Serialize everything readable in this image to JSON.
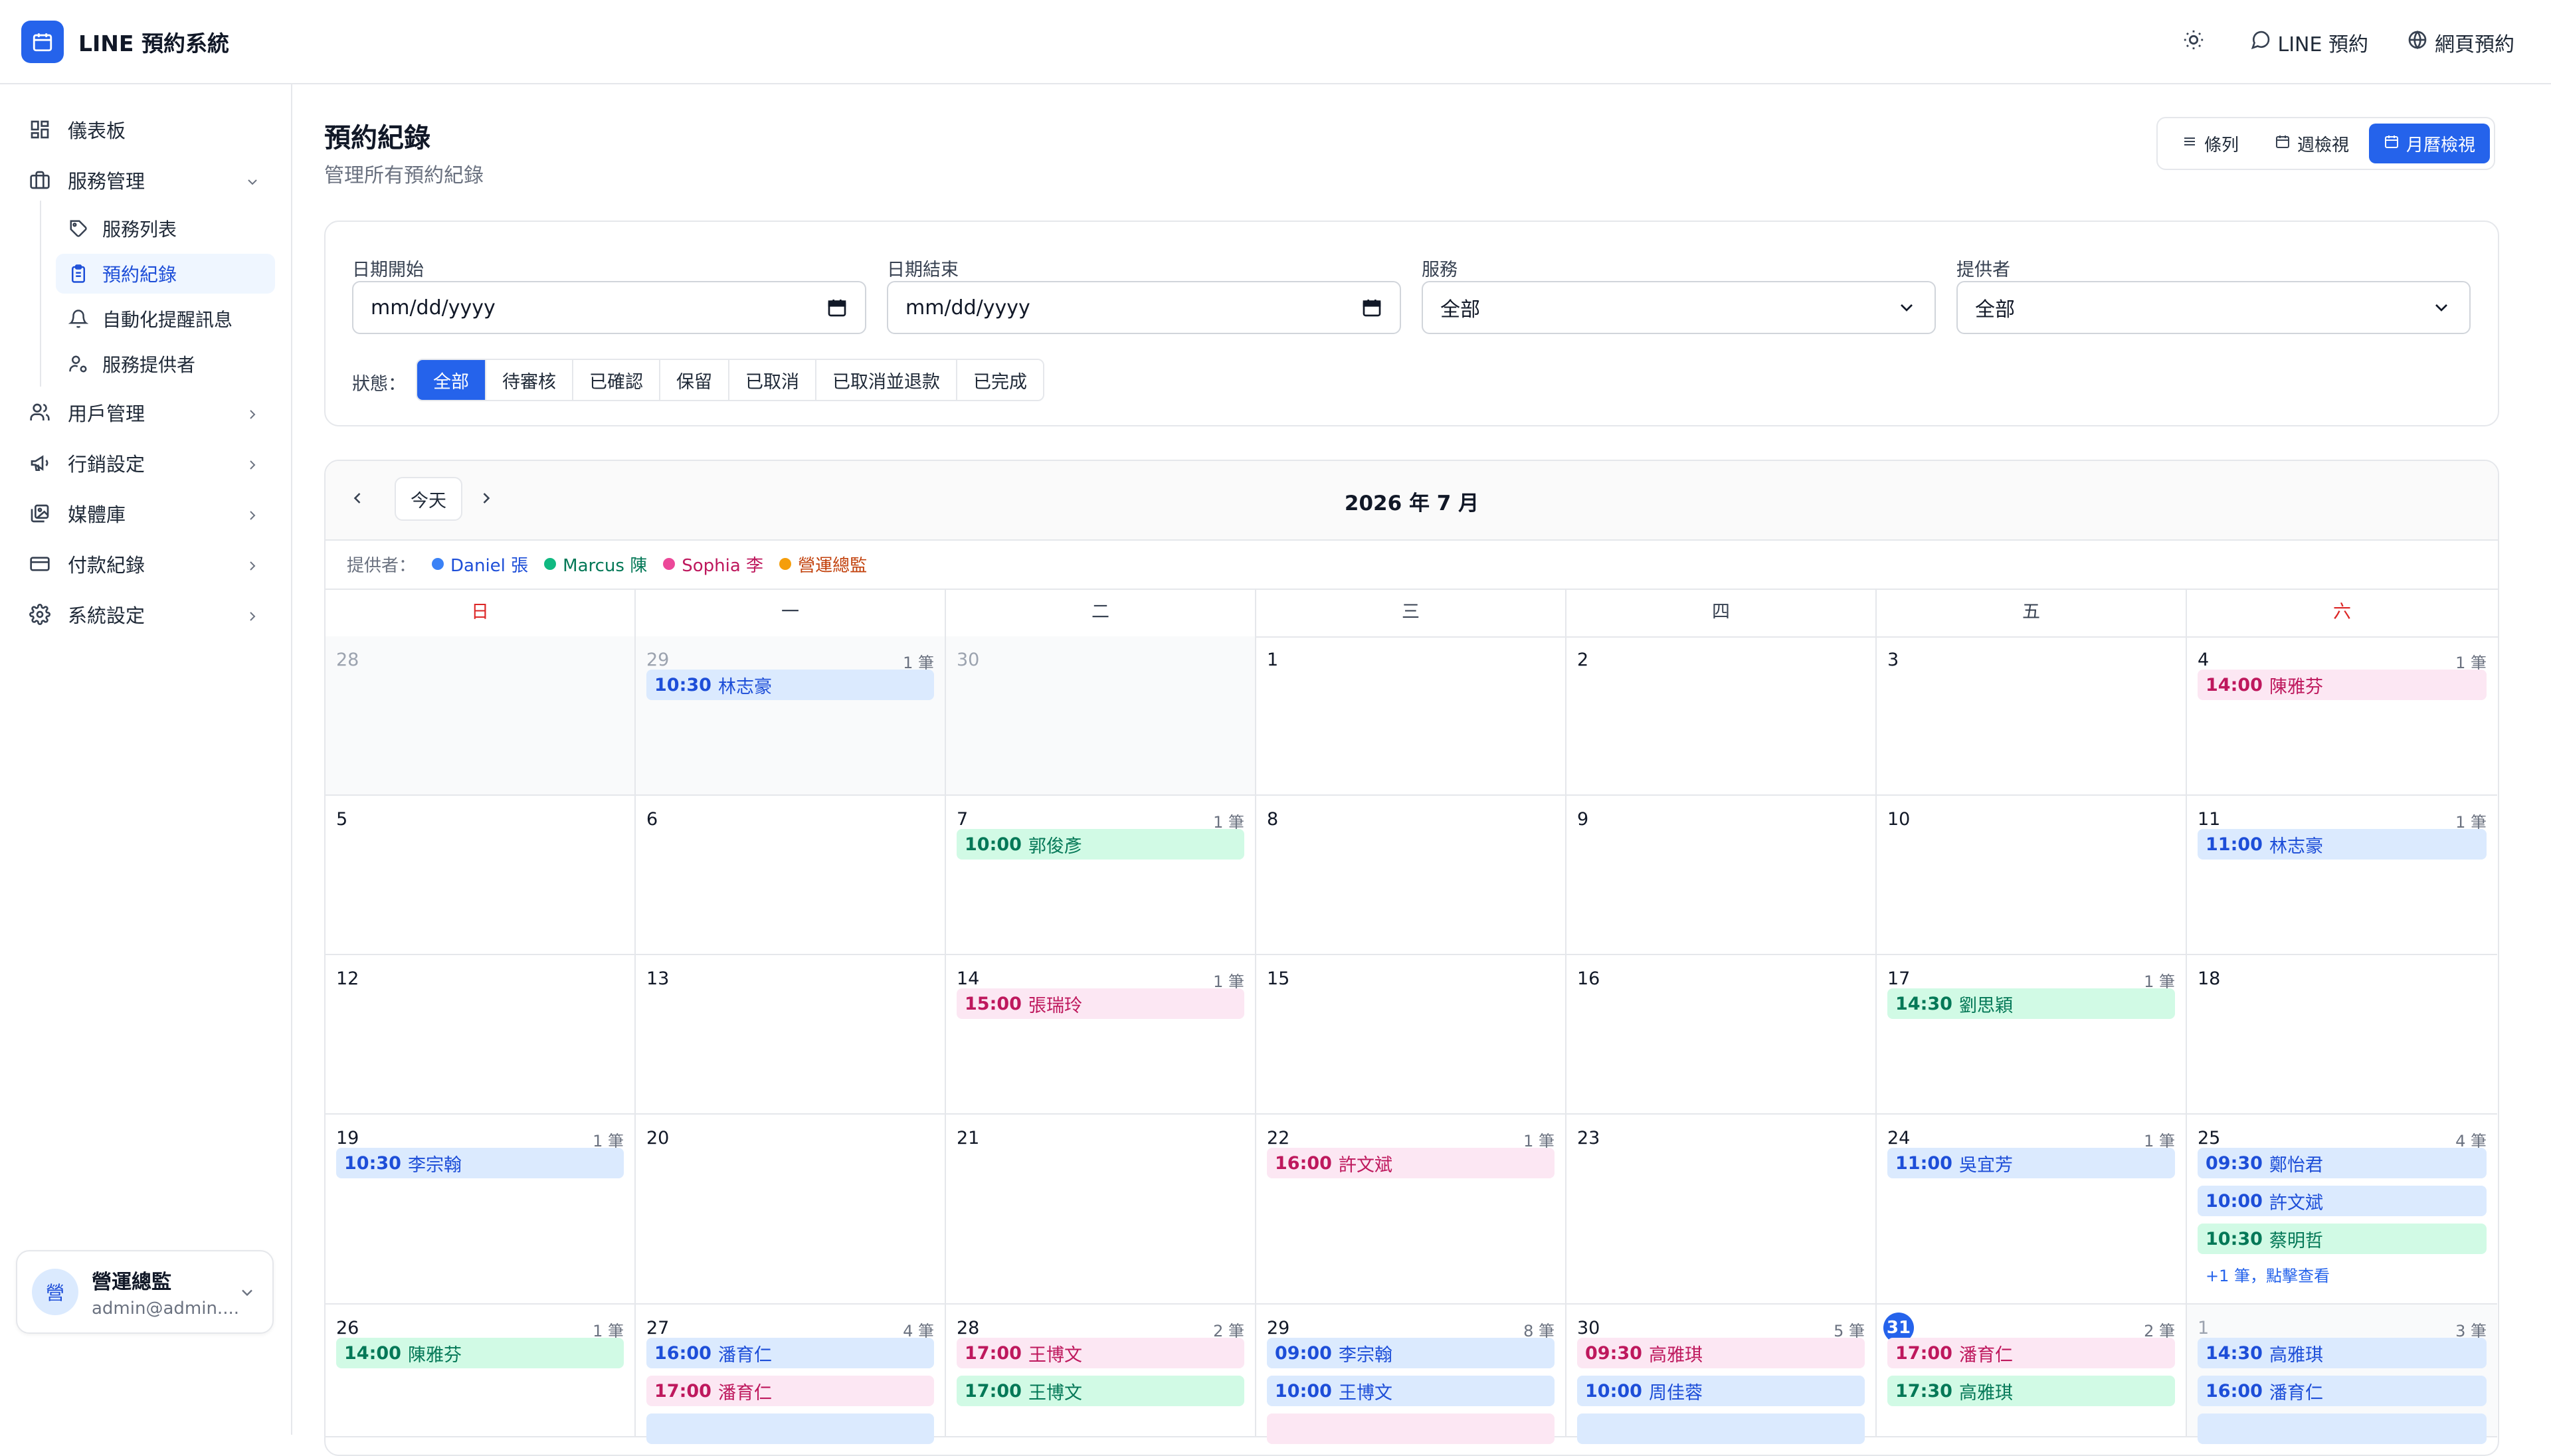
{
  "app": {
    "title": "LINE 預約系統"
  },
  "topbar": {
    "line_booking": "LINE 預約",
    "web_booking": "網頁預約"
  },
  "sidebar": {
    "dashboard": "儀表板",
    "service_mgmt": "服務管理",
    "service_list": "服務列表",
    "booking_records": "預約紀錄",
    "auto_reminders": "自動化提醒訊息",
    "providers": "服務提供者",
    "user_mgmt": "用戶管理",
    "marketing": "行銷設定",
    "media": "媒體庫",
    "payments": "付款紀錄",
    "system": "系統設定"
  },
  "user": {
    "avatar": "營",
    "name": "營運總監",
    "email": "admin@admin...."
  },
  "page": {
    "title": "預約紀錄",
    "subtitle": "管理所有預約紀錄"
  },
  "views": {
    "list": "條列",
    "week": "週檢視",
    "month": "月曆檢視"
  },
  "filters": {
    "date_start_label": "日期開始",
    "date_end_label": "日期結束",
    "service_label": "服務",
    "provider_label": "提供者",
    "date_placeholder": "mm/dd/yyyy",
    "service_value": "全部",
    "provider_value": "全部",
    "status_label": "狀態：",
    "statuses": [
      "全部",
      "待審核",
      "已確認",
      "保留",
      "已取消",
      "已取消並退款",
      "已完成"
    ]
  },
  "calendar": {
    "today_btn": "今天",
    "month_title": "2026 年 7 月",
    "legend_label": "提供者：",
    "providers": [
      {
        "name": "Daniel 張",
        "color": "#3b82f6",
        "text": "#1d4ed8"
      },
      {
        "name": "Marcus 陳",
        "color": "#10b981",
        "text": "#047857"
      },
      {
        "name": "Sophia 李",
        "color": "#ec4899",
        "text": "#be185d"
      },
      {
        "name": "營運總監",
        "color": "#f59e0b",
        "text": "#c2410c"
      }
    ],
    "weekdays": [
      "日",
      "一",
      "二",
      "三",
      "四",
      "五",
      "六"
    ],
    "weeks": [
      [
        {
          "d": "28",
          "other": true
        },
        {
          "d": "29",
          "other": true,
          "count": "1 筆",
          "events": [
            {
              "time": "10:30",
              "name": "林志豪",
              "c": "blue"
            }
          ]
        },
        {
          "d": "30",
          "other": true
        },
        {
          "d": "1"
        },
        {
          "d": "2"
        },
        {
          "d": "3"
        },
        {
          "d": "4",
          "count": "1 筆",
          "events": [
            {
              "time": "14:00",
              "name": "陳雅芬",
              "c": "pink"
            }
          ]
        }
      ],
      [
        {
          "d": "5"
        },
        {
          "d": "6"
        },
        {
          "d": "7",
          "count": "1 筆",
          "events": [
            {
              "time": "10:00",
              "name": "郭俊彥",
              "c": "green"
            }
          ]
        },
        {
          "d": "8"
        },
        {
          "d": "9"
        },
        {
          "d": "10"
        },
        {
          "d": "11",
          "count": "1 筆",
          "events": [
            {
              "time": "11:00",
              "name": "林志豪",
              "c": "blue"
            }
          ]
        }
      ],
      [
        {
          "d": "12"
        },
        {
          "d": "13"
        },
        {
          "d": "14",
          "count": "1 筆",
          "events": [
            {
              "time": "15:00",
              "name": "張瑞玲",
              "c": "pink"
            }
          ]
        },
        {
          "d": "15"
        },
        {
          "d": "16"
        },
        {
          "d": "17",
          "count": "1 筆",
          "events": [
            {
              "time": "14:30",
              "name": "劉思穎",
              "c": "green"
            }
          ]
        },
        {
          "d": "18"
        }
      ],
      [
        {
          "d": "19",
          "count": "1 筆",
          "events": [
            {
              "time": "10:30",
              "name": "李宗翰",
              "c": "blue"
            }
          ]
        },
        {
          "d": "20"
        },
        {
          "d": "21"
        },
        {
          "d": "22",
          "count": "1 筆",
          "events": [
            {
              "time": "16:00",
              "name": "許文斌",
              "c": "pink"
            }
          ]
        },
        {
          "d": "23"
        },
        {
          "d": "24",
          "count": "1 筆",
          "events": [
            {
              "time": "11:00",
              "name": "吳宜芳",
              "c": "blue"
            }
          ]
        },
        {
          "d": "25",
          "count": "4 筆",
          "events": [
            {
              "time": "09:30",
              "name": "鄭怡君",
              "c": "blue"
            },
            {
              "time": "10:00",
              "name": "許文斌",
              "c": "blue"
            },
            {
              "time": "10:30",
              "name": "蔡明哲",
              "c": "green"
            }
          ],
          "more": "+1 筆，點擊查看"
        }
      ],
      [
        {
          "d": "26",
          "count": "1 筆",
          "events": [
            {
              "time": "14:00",
              "name": "陳雅芬",
              "c": "green"
            }
          ]
        },
        {
          "d": "27",
          "count": "4 筆",
          "events": [
            {
              "time": "16:00",
              "name": "潘育仁",
              "c": "blue"
            },
            {
              "time": "17:00",
              "name": "潘育仁",
              "c": "pink"
            },
            {
              "time": "",
              "name": "",
              "c": "blue"
            }
          ]
        },
        {
          "d": "28",
          "count": "2 筆",
          "events": [
            {
              "time": "17:00",
              "name": "王博文",
              "c": "pink"
            },
            {
              "time": "17:00",
              "name": "王博文",
              "c": "green"
            }
          ]
        },
        {
          "d": "29",
          "count": "8 筆",
          "events": [
            {
              "time": "09:00",
              "name": "李宗翰",
              "c": "blue"
            },
            {
              "time": "10:00",
              "name": "王博文",
              "c": "blue"
            },
            {
              "time": "",
              "name": "",
              "c": "pink"
            }
          ]
        },
        {
          "d": "30",
          "count": "5 筆",
          "events": [
            {
              "time": "09:30",
              "name": "高雅琪",
              "c": "pink"
            },
            {
              "time": "10:00",
              "name": "周佳蓉",
              "c": "blue"
            },
            {
              "time": "",
              "name": "",
              "c": "blue"
            }
          ]
        },
        {
          "d": "31",
          "today": true,
          "count": "2 筆",
          "events": [
            {
              "time": "17:00",
              "name": "潘育仁",
              "c": "pink"
            },
            {
              "time": "17:30",
              "name": "高雅琪",
              "c": "green"
            }
          ]
        },
        {
          "d": "1",
          "other": true,
          "count": "3 筆",
          "events": [
            {
              "time": "14:30",
              "name": "高雅琪",
              "c": "blue"
            },
            {
              "time": "16:00",
              "name": "潘育仁",
              "c": "blue"
            },
            {
              "time": "",
              "name": "",
              "c": "blue"
            }
          ]
        }
      ]
    ]
  }
}
